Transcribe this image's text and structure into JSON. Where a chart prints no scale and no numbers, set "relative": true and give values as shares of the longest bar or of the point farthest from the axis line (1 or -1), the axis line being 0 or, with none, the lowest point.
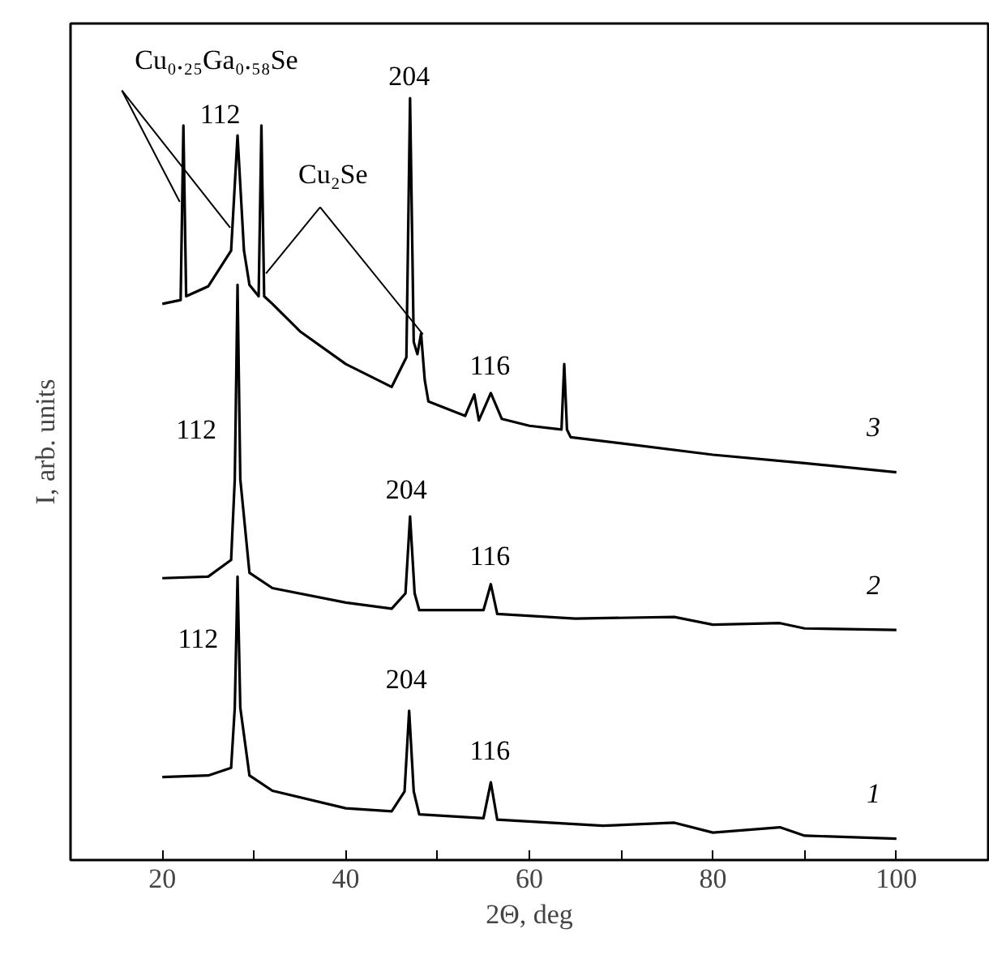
{
  "chart_data": {
    "type": "line",
    "relative": true,
    "xlabel": "2Θ, deg",
    "ylabel": "I, arb. units",
    "xlim": [
      10,
      110
    ],
    "xticks": [
      20,
      {
        "value": 30,
        "label": null
      },
      40,
      {
        "value": 50,
        "label": null
      },
      60,
      {
        "value": 70,
        "label": null
      },
      80,
      {
        "value": 90,
        "label": null
      },
      100
    ],
    "grid": false,
    "series": [
      {
        "name": "3",
        "color": "#000000",
        "x": [
          20,
          22.0,
          22.3,
          22.6,
          25,
          27.5,
          28.2,
          28.9,
          29.5,
          30.5,
          30.8,
          31.1,
          32,
          35,
          40,
          45,
          46.6,
          47,
          47.4,
          47.8,
          48.2,
          48.6,
          49,
          53,
          54,
          54.5,
          55.8,
          57,
          60,
          63.5,
          63.8,
          64.1,
          64.5,
          70,
          80,
          90,
          100
        ],
        "values": [
          0.73,
          0.735,
          0.964,
          0.74,
          0.753,
          0.8,
          0.951,
          0.8,
          0.755,
          0.74,
          0.964,
          0.74,
          0.73,
          0.694,
          0.651,
          0.621,
          0.66,
          1.0,
          0.68,
          0.664,
          0.691,
          0.63,
          0.602,
          0.583,
          0.611,
          0.577,
          0.613,
          0.579,
          0.57,
          0.565,
          0.651,
          0.565,
          0.555,
          0.547,
          0.532,
          0.521,
          0.509
        ]
      },
      {
        "name": "2",
        "color": "#000000",
        "x": [
          20,
          25,
          27.5,
          27.9,
          28.2,
          28.5,
          29.5,
          32,
          40,
          45,
          46.5,
          47,
          47.5,
          48,
          55,
          55.8,
          56.5,
          65,
          75.8,
          80,
          87.3,
          90,
          100
        ],
        "values": [
          0.37,
          0.372,
          0.394,
          0.5,
          0.755,
          0.5,
          0.377,
          0.357,
          0.338,
          0.33,
          0.35,
          0.451,
          0.35,
          0.328,
          0.328,
          0.362,
          0.323,
          0.317,
          0.319,
          0.309,
          0.311,
          0.304,
          0.302
        ]
      },
      {
        "name": "1",
        "color": "#000000",
        "x": [
          20,
          25,
          27.5,
          27.9,
          28.2,
          28.5,
          29.5,
          32,
          40,
          45,
          46.4,
          46.9,
          47.4,
          48,
          55,
          55.8,
          56.5,
          68,
          75.8,
          80,
          87.3,
          90,
          100
        ],
        "values": [
          0.109,
          0.111,
          0.121,
          0.2,
          0.372,
          0.2,
          0.111,
          0.091,
          0.068,
          0.064,
          0.09,
          0.196,
          0.09,
          0.06,
          0.055,
          0.102,
          0.053,
          0.045,
          0.049,
          0.036,
          0.043,
          0.032,
          0.028
        ]
      }
    ],
    "annotations": [
      "Cu₀.₂₅Ga₀.₅₈Se",
      "Cu₂Se",
      "112",
      "204",
      "116",
      "112",
      "204",
      "116",
      "112",
      "204",
      "116"
    ]
  }
}
